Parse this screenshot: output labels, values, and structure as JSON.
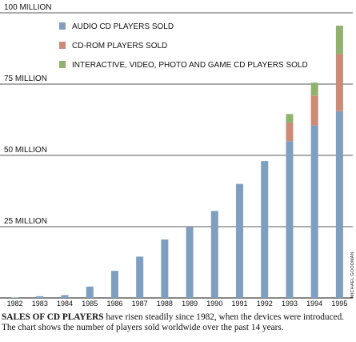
{
  "chart_data": {
    "type": "bar",
    "stacked": true,
    "categories": [
      "1982",
      "1983",
      "1984",
      "1985",
      "1986",
      "1987",
      "1988",
      "1989",
      "1990",
      "1991",
      "1992",
      "1993",
      "1994",
      "1995"
    ],
    "series": [
      {
        "name": "AUDIO CD PLAYERS SOLD",
        "color": "#7f9fc0",
        "values": [
          0.2,
          0.6,
          1.0,
          4.0,
          9.5,
          14.5,
          20.5,
          25.0,
          30.5,
          40.0,
          48.0,
          55.0,
          60.5,
          65.5
        ]
      },
      {
        "name": "CD-ROM PLAYERS SOLD",
        "color": "#cc8b76",
        "values": [
          0,
          0,
          0,
          0,
          0,
          0,
          0,
          0,
          0,
          0,
          0,
          6.5,
          10.5,
          20.0
        ]
      },
      {
        "name": "INTERACTIVE, VIDEO, PHOTO AND GAME CD PLAYERS SOLD",
        "color": "#92b16f",
        "values": [
          0,
          0,
          0,
          0,
          0,
          0,
          0,
          0,
          0,
          0,
          0,
          3.0,
          4.5,
          10.0
        ]
      }
    ],
    "yticks": [
      {
        "value": 25,
        "label": "25 MILLION"
      },
      {
        "value": 50,
        "label": "50 MILLION"
      },
      {
        "value": 75,
        "label": "75 MILLION"
      },
      {
        "value": 100,
        "label": "100 MILLION"
      }
    ],
    "ylim": [
      0,
      100
    ],
    "grid": true,
    "legend_position": "top-left"
  },
  "credit": "MICHAEL GOODMAN",
  "caption": {
    "lead": "SALES OF CD PLAYERS",
    "rest": " have risen steadily since 1982, when the devices were introduced. The chart shows the number of players sold worldwide over the past 14 years."
  }
}
